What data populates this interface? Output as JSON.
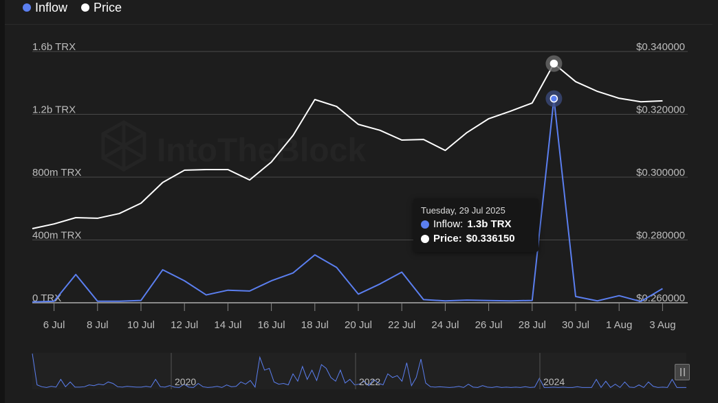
{
  "legend": [
    {
      "label": "Inflow",
      "color": "#5b7ff0"
    },
    {
      "label": "Price",
      "color": "#ffffff"
    }
  ],
  "watermark": "IntoTheBlock",
  "tooltip": {
    "date": "Tuesday, 29 Jul 2025",
    "inflow_label": "Inflow:",
    "inflow_value": "1.3b TRX",
    "price_label": "Price:",
    "price_value": "$0.336150"
  },
  "chart_data": {
    "type": "line",
    "x": [
      "5 Jul",
      "6 Jul",
      "7 Jul",
      "8 Jul",
      "9 Jul",
      "10 Jul",
      "11 Jul",
      "12 Jul",
      "13 Jul",
      "14 Jul",
      "15 Jul",
      "16 Jul",
      "17 Jul",
      "18 Jul",
      "19 Jul",
      "20 Jul",
      "21 Jul",
      "22 Jul",
      "23 Jul",
      "24 Jul",
      "25 Jul",
      "26 Jul",
      "27 Jul",
      "28 Jul",
      "29 Jul",
      "30 Jul",
      "31 Jul",
      "1 Aug",
      "2 Aug",
      "3 Aug"
    ],
    "x_tick_labels": [
      "6 Jul",
      "8 Jul",
      "10 Jul",
      "12 Jul",
      "14 Jul",
      "16 Jul",
      "18 Jul",
      "20 Jul",
      "22 Jul",
      "24 Jul",
      "26 Jul",
      "28 Jul",
      "30 Jul",
      "1 Aug",
      "3 Aug"
    ],
    "series": [
      {
        "name": "Inflow",
        "axis": "left",
        "unit": "TRX (millions)",
        "color": "#5b7ff0",
        "values": [
          5,
          10,
          180,
          10,
          10,
          15,
          210,
          140,
          50,
          80,
          75,
          140,
          190,
          305,
          225,
          55,
          120,
          195,
          20,
          12,
          17,
          14,
          12,
          15,
          1300,
          40,
          12,
          45,
          8,
          90
        ]
      },
      {
        "name": "Price",
        "axis": "right",
        "unit": "USD",
        "color": "#ffffff",
        "values": [
          0.2836,
          0.2851,
          0.2871,
          0.2869,
          0.2884,
          0.2917,
          0.2983,
          0.3022,
          0.3024,
          0.3024,
          0.2991,
          0.3048,
          0.3133,
          0.3247,
          0.3225,
          0.3168,
          0.3149,
          0.3118,
          0.312,
          0.3085,
          0.3142,
          0.3186,
          0.321,
          0.3236,
          0.33615,
          0.3304,
          0.3273,
          0.3251,
          0.324,
          0.3243
        ]
      }
    ],
    "left_axis": {
      "ylim": [
        0,
        1600
      ],
      "ticks": [
        0,
        400,
        800,
        1200,
        1600
      ],
      "tick_labels": [
        "0 TRX",
        "400m TRX",
        "800m TRX",
        "1.2b TRX",
        "1.6b TRX"
      ]
    },
    "right_axis": {
      "ylim": [
        0.26,
        0.34
      ],
      "ticks": [
        0.26,
        0.28,
        0.3,
        0.32,
        0.34
      ],
      "tick_labels": [
        "$0.260000",
        "$0.280000",
        "$0.300000",
        "$0.320000",
        "$0.340000"
      ]
    },
    "highlight_index": 24,
    "legend_position": "top-left",
    "grid": true,
    "navigator": {
      "year_labels": [
        "2020",
        "2022",
        "2024"
      ],
      "values": [
        95,
        10,
        5,
        3,
        6,
        4,
        25,
        5,
        18,
        4,
        4,
        5,
        10,
        8,
        12,
        10,
        18,
        14,
        5,
        4,
        6,
        5,
        4,
        4,
        6,
        4,
        25,
        5,
        4,
        8,
        4,
        3,
        12,
        4,
        3,
        14,
        5,
        3,
        4,
        6,
        3,
        10,
        5,
        6,
        18,
        12,
        22,
        4,
        85,
        50,
        55,
        18,
        12,
        14,
        10,
        40,
        20,
        60,
        25,
        50,
        22,
        65,
        55,
        30,
        20,
        50,
        15,
        25,
        10,
        12,
        20,
        8,
        25,
        15,
        10,
        40,
        30,
        35,
        20,
        70,
        8,
        30,
        80,
        15,
        5,
        4,
        5,
        4,
        3,
        4,
        6,
        3,
        12,
        4,
        3,
        8,
        4,
        3,
        5,
        3,
        4,
        3,
        4,
        3,
        5,
        3,
        4,
        28,
        3,
        3,
        4,
        3,
        4,
        3,
        3,
        5,
        3,
        3,
        3,
        25,
        3,
        20,
        3,
        12,
        3,
        18,
        4,
        3,
        10,
        3,
        18,
        6,
        3,
        4,
        3,
        25,
        3,
        3,
        3
      ]
    }
  }
}
